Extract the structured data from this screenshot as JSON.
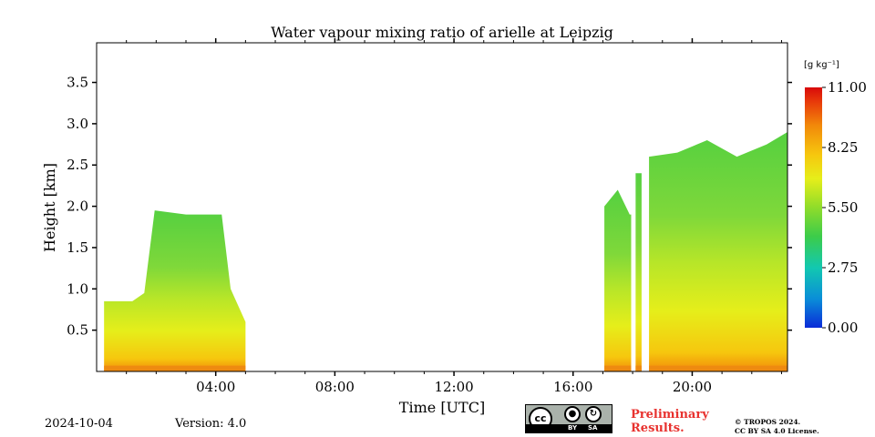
{
  "chart_data": {
    "type": "heatmap",
    "title": "Water vapour mixing ratio of arielle at Leipzig",
    "xlabel": "Time [UTC]",
    "ylabel": "Height [km]",
    "xlim": [
      0,
      23.2
    ],
    "ylim": [
      0,
      3.98
    ],
    "x_ticks": [
      4,
      8,
      12,
      16,
      20
    ],
    "x_tick_labels": [
      "04:00",
      "08:00",
      "12:00",
      "16:00",
      "20:00"
    ],
    "y_ticks": [
      0.5,
      1.0,
      1.5,
      2.0,
      2.5,
      3.0,
      3.5
    ],
    "y_tick_labels": [
      "0.5",
      "1.0",
      "1.5",
      "2.0",
      "2.5",
      "3.0",
      "3.5"
    ],
    "colorbar": {
      "unit_label": "[g kg⁻¹]",
      "min": 0,
      "max": 11,
      "ticks": [
        0,
        2.75,
        5.5,
        8.25,
        11
      ],
      "tick_labels": [
        "0.00",
        "2.75",
        "5.50",
        "8.25",
        "11.00"
      ]
    },
    "data_segments": [
      {
        "t_start": 0.25,
        "t_end": 5.0,
        "top_km_profile": [
          [
            0.25,
            0.85
          ],
          [
            1.2,
            0.85
          ],
          [
            1.6,
            0.95
          ],
          [
            1.95,
            1.95
          ],
          [
            3.0,
            1.9
          ],
          [
            4.2,
            1.9
          ],
          [
            4.5,
            1.0
          ],
          [
            5.0,
            0.6
          ]
        ]
      },
      {
        "t_start": 17.05,
        "t_end": 17.95,
        "top_km_profile": [
          [
            17.05,
            2.0
          ],
          [
            17.5,
            2.2
          ],
          [
            17.9,
            1.9
          ]
        ]
      },
      {
        "t_start": 18.1,
        "t_end": 18.3,
        "top_km_profile": [
          [
            18.1,
            2.4
          ],
          [
            18.3,
            2.4
          ]
        ]
      },
      {
        "t_start": 18.55,
        "t_end": 23.2,
        "top_km_profile": [
          [
            18.55,
            2.6
          ],
          [
            19.5,
            2.65
          ],
          [
            20.5,
            2.8
          ],
          [
            21.5,
            2.6
          ],
          [
            22.5,
            2.75
          ],
          [
            23.2,
            2.9
          ]
        ]
      }
    ]
  },
  "footer": {
    "date": "2024-10-04",
    "version": "Version: 4.0",
    "preliminary_line1": "Preliminary",
    "preliminary_line2": "Results.",
    "copyright_line1": "© TROPOS 2024.",
    "copyright_line2": "CC BY SA 4.0 License.",
    "license_by": "BY",
    "license_sa": "SA",
    "license_cc": "cc"
  },
  "colors": {
    "colormap": [
      "#0a2bd8",
      "#0a8ed8",
      "#12c8b0",
      "#3ccc4a",
      "#8fdc2a",
      "#e6ee1a",
      "#f6c70e",
      "#f28a0a",
      "#e83a0a",
      "#d80a0a"
    ],
    "preliminary": "#e8322f"
  }
}
